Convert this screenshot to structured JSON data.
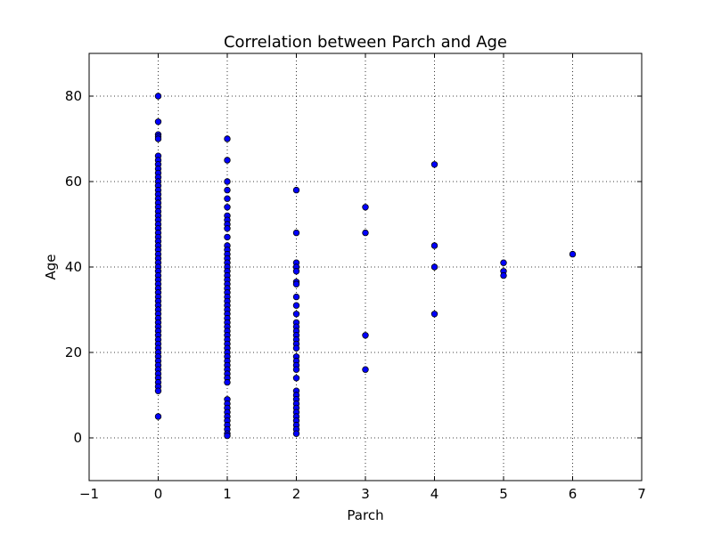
{
  "chart_data": {
    "type": "scatter",
    "title": "Correlation between Parch and Age",
    "xlabel": "Parch",
    "ylabel": "Age",
    "xlim": [
      -1,
      7
    ],
    "ylim": [
      -10,
      90
    ],
    "xticks": [
      -1,
      0,
      1,
      2,
      3,
      4,
      5,
      6,
      7
    ],
    "yticks": [
      0,
      20,
      40,
      60,
      80
    ],
    "xtick_labels": [
      "−1",
      "0",
      "1",
      "2",
      "3",
      "4",
      "5",
      "6",
      "7"
    ],
    "ytick_labels": [
      "0",
      "20",
      "40",
      "60",
      "80"
    ],
    "grid": true,
    "marker_color": "#0000ff",
    "points": [
      {
        "x": 0,
        "y": 80
      },
      {
        "x": 0,
        "y": 74
      },
      {
        "x": 0,
        "y": 71
      },
      {
        "x": 0,
        "y": 70.5
      },
      {
        "x": 0,
        "y": 70
      },
      {
        "x": 0,
        "y": 66
      },
      {
        "x": 0,
        "y": 65
      },
      {
        "x": 0,
        "y": 64
      },
      {
        "x": 0,
        "y": 63
      },
      {
        "x": 0,
        "y": 62
      },
      {
        "x": 0,
        "y": 61
      },
      {
        "x": 0,
        "y": 60
      },
      {
        "x": 0,
        "y": 59
      },
      {
        "x": 0,
        "y": 58
      },
      {
        "x": 0,
        "y": 57
      },
      {
        "x": 0,
        "y": 56
      },
      {
        "x": 0,
        "y": 55
      },
      {
        "x": 0,
        "y": 54
      },
      {
        "x": 0,
        "y": 53
      },
      {
        "x": 0,
        "y": 52
      },
      {
        "x": 0,
        "y": 51
      },
      {
        "x": 0,
        "y": 50
      },
      {
        "x": 0,
        "y": 49
      },
      {
        "x": 0,
        "y": 48
      },
      {
        "x": 0,
        "y": 47
      },
      {
        "x": 0,
        "y": 46
      },
      {
        "x": 0,
        "y": 45
      },
      {
        "x": 0,
        "y": 44
      },
      {
        "x": 0,
        "y": 43
      },
      {
        "x": 0,
        "y": 42
      },
      {
        "x": 0,
        "y": 41
      },
      {
        "x": 0,
        "y": 40
      },
      {
        "x": 0,
        "y": 39
      },
      {
        "x": 0,
        "y": 38
      },
      {
        "x": 0,
        "y": 37
      },
      {
        "x": 0,
        "y": 36
      },
      {
        "x": 0,
        "y": 35
      },
      {
        "x": 0,
        "y": 34
      },
      {
        "x": 0,
        "y": 33
      },
      {
        "x": 0,
        "y": 32
      },
      {
        "x": 0,
        "y": 31
      },
      {
        "x": 0,
        "y": 30
      },
      {
        "x": 0,
        "y": 29
      },
      {
        "x": 0,
        "y": 28
      },
      {
        "x": 0,
        "y": 27
      },
      {
        "x": 0,
        "y": 26
      },
      {
        "x": 0,
        "y": 25
      },
      {
        "x": 0,
        "y": 24
      },
      {
        "x": 0,
        "y": 23
      },
      {
        "x": 0,
        "y": 22
      },
      {
        "x": 0,
        "y": 21
      },
      {
        "x": 0,
        "y": 20
      },
      {
        "x": 0,
        "y": 19
      },
      {
        "x": 0,
        "y": 18
      },
      {
        "x": 0,
        "y": 17
      },
      {
        "x": 0,
        "y": 16
      },
      {
        "x": 0,
        "y": 15
      },
      {
        "x": 0,
        "y": 14
      },
      {
        "x": 0,
        "y": 13
      },
      {
        "x": 0,
        "y": 12
      },
      {
        "x": 0,
        "y": 11
      },
      {
        "x": 0,
        "y": 5
      },
      {
        "x": 1,
        "y": 70
      },
      {
        "x": 1,
        "y": 65
      },
      {
        "x": 1,
        "y": 60
      },
      {
        "x": 1,
        "y": 58
      },
      {
        "x": 1,
        "y": 56
      },
      {
        "x": 1,
        "y": 54
      },
      {
        "x": 1,
        "y": 52
      },
      {
        "x": 1,
        "y": 51
      },
      {
        "x": 1,
        "y": 50
      },
      {
        "x": 1,
        "y": 49
      },
      {
        "x": 1,
        "y": 47
      },
      {
        "x": 1,
        "y": 45
      },
      {
        "x": 1,
        "y": 44
      },
      {
        "x": 1,
        "y": 43
      },
      {
        "x": 1,
        "y": 42
      },
      {
        "x": 1,
        "y": 41
      },
      {
        "x": 1,
        "y": 40
      },
      {
        "x": 1,
        "y": 39
      },
      {
        "x": 1,
        "y": 38
      },
      {
        "x": 1,
        "y": 37
      },
      {
        "x": 1,
        "y": 36
      },
      {
        "x": 1,
        "y": 35
      },
      {
        "x": 1,
        "y": 34
      },
      {
        "x": 1,
        "y": 33
      },
      {
        "x": 1,
        "y": 32
      },
      {
        "x": 1,
        "y": 31
      },
      {
        "x": 1,
        "y": 30
      },
      {
        "x": 1,
        "y": 29
      },
      {
        "x": 1,
        "y": 28
      },
      {
        "x": 1,
        "y": 27
      },
      {
        "x": 1,
        "y": 26
      },
      {
        "x": 1,
        "y": 25
      },
      {
        "x": 1,
        "y": 24
      },
      {
        "x": 1,
        "y": 23
      },
      {
        "x": 1,
        "y": 22
      },
      {
        "x": 1,
        "y": 21
      },
      {
        "x": 1,
        "y": 20
      },
      {
        "x": 1,
        "y": 19
      },
      {
        "x": 1,
        "y": 18
      },
      {
        "x": 1,
        "y": 17
      },
      {
        "x": 1,
        "y": 16
      },
      {
        "x": 1,
        "y": 15
      },
      {
        "x": 1,
        "y": 14
      },
      {
        "x": 1,
        "y": 13
      },
      {
        "x": 1,
        "y": 9
      },
      {
        "x": 1,
        "y": 8
      },
      {
        "x": 1,
        "y": 7
      },
      {
        "x": 1,
        "y": 6
      },
      {
        "x": 1,
        "y": 5
      },
      {
        "x": 1,
        "y": 4
      },
      {
        "x": 1,
        "y": 3
      },
      {
        "x": 1,
        "y": 2
      },
      {
        "x": 1,
        "y": 1
      },
      {
        "x": 1,
        "y": 0.5
      },
      {
        "x": 2,
        "y": 58
      },
      {
        "x": 2,
        "y": 48
      },
      {
        "x": 2,
        "y": 41
      },
      {
        "x": 2,
        "y": 40
      },
      {
        "x": 2,
        "y": 39
      },
      {
        "x": 2,
        "y": 36.5
      },
      {
        "x": 2,
        "y": 36
      },
      {
        "x": 2,
        "y": 33
      },
      {
        "x": 2,
        "y": 31
      },
      {
        "x": 2,
        "y": 29
      },
      {
        "x": 2,
        "y": 27
      },
      {
        "x": 2,
        "y": 26
      },
      {
        "x": 2,
        "y": 25
      },
      {
        "x": 2,
        "y": 24
      },
      {
        "x": 2,
        "y": 23
      },
      {
        "x": 2,
        "y": 22
      },
      {
        "x": 2,
        "y": 21
      },
      {
        "x": 2,
        "y": 19
      },
      {
        "x": 2,
        "y": 18
      },
      {
        "x": 2,
        "y": 17
      },
      {
        "x": 2,
        "y": 16
      },
      {
        "x": 2,
        "y": 14
      },
      {
        "x": 2,
        "y": 11
      },
      {
        "x": 2,
        "y": 10
      },
      {
        "x": 2,
        "y": 9
      },
      {
        "x": 2,
        "y": 8
      },
      {
        "x": 2,
        "y": 7
      },
      {
        "x": 2,
        "y": 6
      },
      {
        "x": 2,
        "y": 5
      },
      {
        "x": 2,
        "y": 4
      },
      {
        "x": 2,
        "y": 3
      },
      {
        "x": 2,
        "y": 2
      },
      {
        "x": 2,
        "y": 1
      },
      {
        "x": 3,
        "y": 54
      },
      {
        "x": 3,
        "y": 48
      },
      {
        "x": 3,
        "y": 24
      },
      {
        "x": 3,
        "y": 16
      },
      {
        "x": 4,
        "y": 64
      },
      {
        "x": 4,
        "y": 45
      },
      {
        "x": 4,
        "y": 40
      },
      {
        "x": 4,
        "y": 29
      },
      {
        "x": 5,
        "y": 41
      },
      {
        "x": 5,
        "y": 39
      },
      {
        "x": 5,
        "y": 38
      },
      {
        "x": 6,
        "y": 43
      }
    ]
  }
}
